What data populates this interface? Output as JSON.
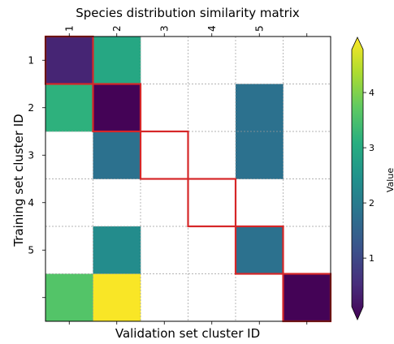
{
  "chart_data": {
    "type": "heatmap",
    "title": "Species distribution similarity matrix",
    "xlabel": "Validation set cluster ID",
    "ylabel": "Training set cluster ID",
    "x_tick_labels": [
      "1",
      "2",
      "3",
      "4",
      "5",
      ""
    ],
    "y_tick_labels": [
      "1",
      "2",
      "3",
      "4",
      "5",
      ""
    ],
    "colorbar": {
      "label": "Value",
      "colormap": "viridis",
      "range": [
        0.12,
        4.78
      ],
      "ticks": [
        1,
        2,
        3,
        4
      ],
      "extend": "both"
    },
    "cells": [
      {
        "row": 0,
        "col": 0,
        "value": 0.6
      },
      {
        "row": 0,
        "col": 1,
        "value": 2.9
      },
      {
        "row": 1,
        "col": 0,
        "value": 3.1
      },
      {
        "row": 1,
        "col": 1,
        "value": 0.15
      },
      {
        "row": 1,
        "col": 4,
        "value": 1.85
      },
      {
        "row": 2,
        "col": 1,
        "value": 1.85
      },
      {
        "row": 2,
        "col": 4,
        "value": 1.85
      },
      {
        "row": 4,
        "col": 1,
        "value": 2.35
      },
      {
        "row": 4,
        "col": 4,
        "value": 1.85
      },
      {
        "row": 5,
        "col": 0,
        "value": 3.5
      },
      {
        "row": 5,
        "col": 1,
        "value": 4.75
      },
      {
        "row": 5,
        "col": 5,
        "value": 0.15
      }
    ],
    "highlighted_diagonal": [
      0,
      1,
      2,
      3,
      4,
      5
    ],
    "highlight_color": "#d62728",
    "grid": true
  }
}
